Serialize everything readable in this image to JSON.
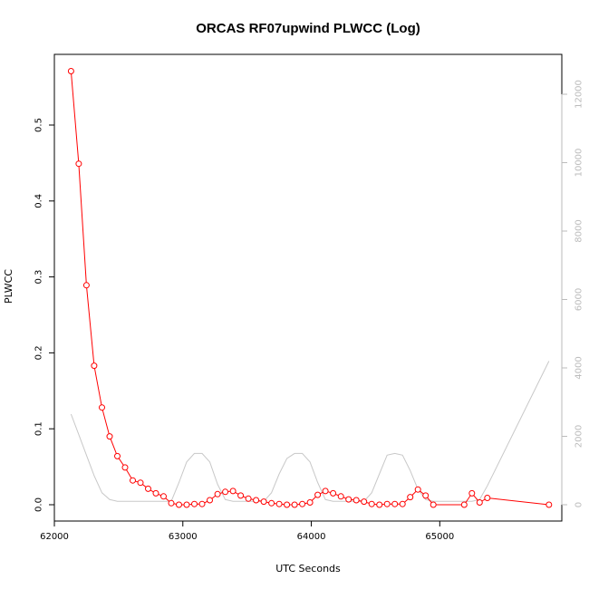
{
  "chart_data": {
    "type": "line",
    "title": "ORCAS RF07upwind PLWCC (Log)",
    "xlabel": "UTC Seconds",
    "ylabel": "PLWCC",
    "xlim": [
      62000,
      65950
    ],
    "ylim": [
      0,
      0.6
    ],
    "y2lim": [
      0,
      13000
    ],
    "x_ticks": [
      62000,
      63000,
      64000,
      65000
    ],
    "y_ticks": [
      0.0,
      0.1,
      0.2,
      0.3,
      0.4,
      0.5
    ],
    "y_tick_labels": [
      "0.0",
      "0.1",
      "0.2",
      "0.3",
      "0.4",
      "0.5"
    ],
    "y2_ticks": [
      0,
      2000,
      4000,
      6000,
      8000,
      10000,
      12000
    ],
    "grid": false,
    "colors": {
      "primary": "#ff0000",
      "secondary": "#c8c8c8",
      "right_axis": "#bbbbbb"
    },
    "series": [
      {
        "axis": "left",
        "style": "line+points",
        "x": [
          62130,
          62190,
          62250,
          62310,
          62370,
          62430,
          62490,
          62550,
          62610,
          62670,
          62730,
          62790,
          62850,
          62910,
          62970,
          63030,
          63090,
          63150,
          63210,
          63270,
          63330,
          63390,
          63450,
          63510,
          63570,
          63630,
          63690,
          63750,
          63810,
          63870,
          63930,
          63990,
          64050,
          64110,
          64170,
          64230,
          64290,
          64350,
          64410,
          64470,
          64530,
          64590,
          64650,
          64710,
          64770,
          64830,
          64890,
          64950,
          65190,
          65250,
          65310,
          65370,
          65850
        ],
        "y": [
          0.571,
          0.449,
          0.289,
          0.183,
          0.128,
          0.09,
          0.064,
          0.049,
          0.032,
          0.029,
          0.021,
          0.015,
          0.011,
          0.002,
          0.0,
          0.0,
          0.001,
          0.001,
          0.006,
          0.014,
          0.017,
          0.018,
          0.012,
          0.008,
          0.006,
          0.004,
          0.002,
          0.001,
          0.0,
          0.0,
          0.001,
          0.003,
          0.013,
          0.018,
          0.015,
          0.011,
          0.007,
          0.006,
          0.004,
          0.001,
          0.0,
          0.001,
          0.001,
          0.001,
          0.01,
          0.02,
          0.012,
          0.0,
          0.0,
          0.015,
          0.003,
          0.009,
          0.0
        ]
      },
      {
        "axis": "right",
        "style": "line",
        "x": [
          62130,
          62190,
          62250,
          62310,
          62370,
          62430,
          62490,
          62550,
          62610,
          62670,
          62730,
          62790,
          62850,
          62910,
          62970,
          63030,
          63090,
          63150,
          63210,
          63270,
          63330,
          63390,
          63450,
          63510,
          63570,
          63630,
          63690,
          63750,
          63810,
          63870,
          63930,
          63990,
          64050,
          64110,
          64170,
          64230,
          64290,
          64350,
          64410,
          64470,
          64530,
          64590,
          64650,
          64710,
          64770,
          64830,
          64890,
          64950,
          65190,
          65250,
          65310,
          65370,
          65850
        ],
        "y": [
          2650,
          2050,
          1450,
          850,
          350,
          150,
          100,
          100,
          100,
          100,
          100,
          100,
          100,
          100,
          650,
          1250,
          1500,
          1500,
          1250,
          600,
          150,
          100,
          100,
          100,
          100,
          100,
          350,
          900,
          1350,
          1500,
          1500,
          1250,
          650,
          150,
          100,
          100,
          100,
          100,
          100,
          350,
          900,
          1450,
          1500,
          1450,
          1000,
          450,
          150,
          100,
          100,
          100,
          150,
          550,
          4200
        ]
      }
    ]
  }
}
